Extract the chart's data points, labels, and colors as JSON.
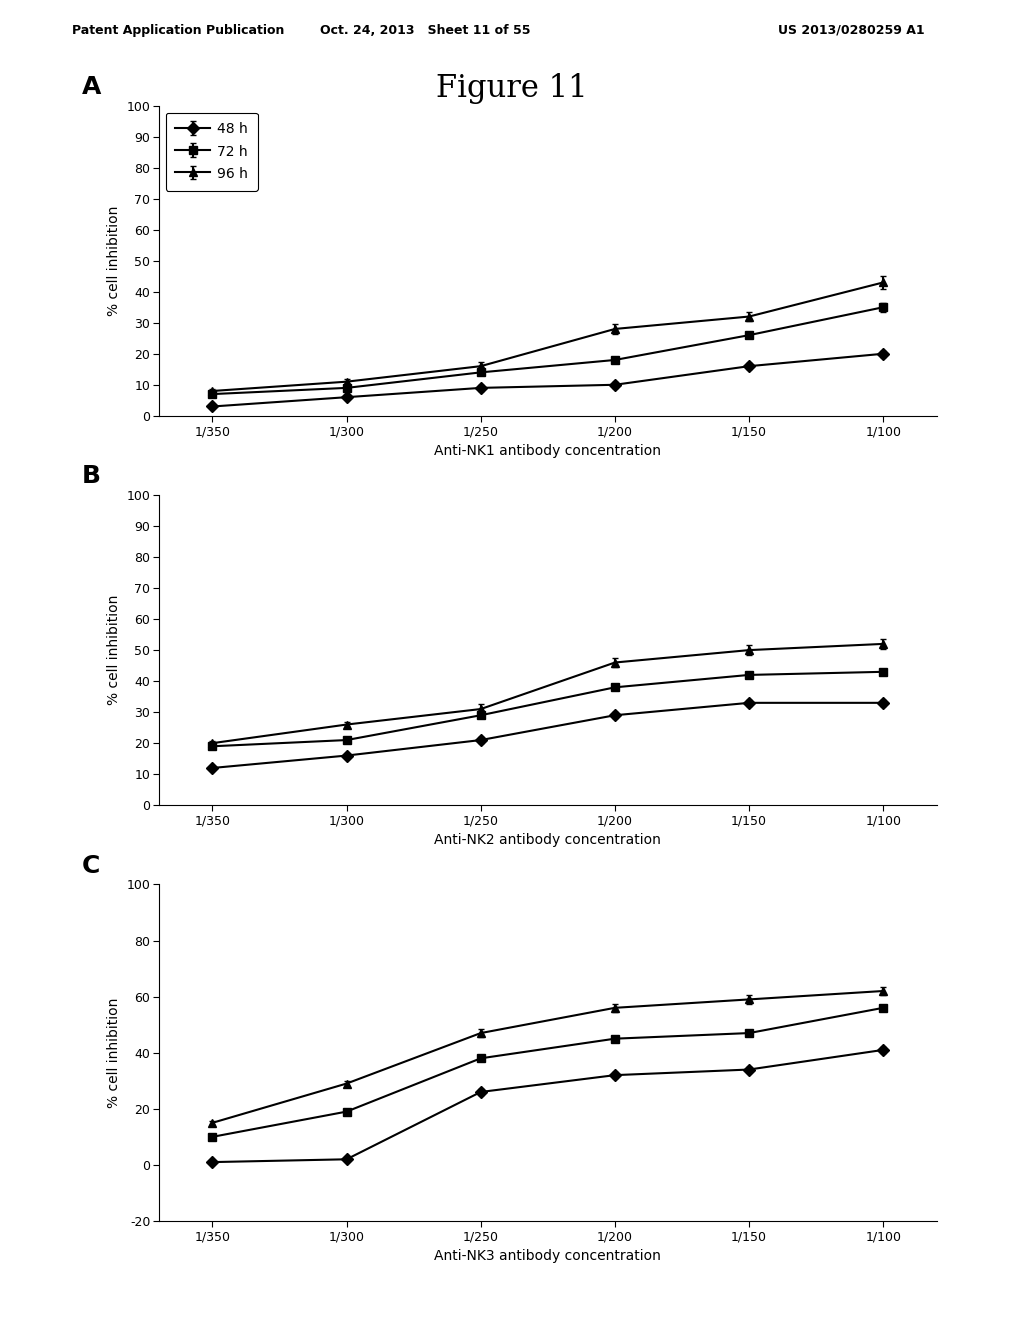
{
  "header_left": "Patent Application Publication",
  "header_mid": "Oct. 24, 2013   Sheet 11 of 55",
  "header_right": "US 2013/0280259 A1",
  "figure_title": "Figure 11",
  "x_labels": [
    "1/350",
    "1/300",
    "1/250",
    "1/200",
    "1/150",
    "1/100"
  ],
  "x_positions": [
    0,
    1,
    2,
    3,
    4,
    5
  ],
  "legend_labels": [
    "48 h",
    "72 h",
    "96 h"
  ],
  "panel_A": {
    "label": "A",
    "xlabel": "Anti-NK1 antibody concentration",
    "ylabel": "% cell inhibition",
    "ylim": [
      0,
      100
    ],
    "yticks": [
      0,
      10,
      20,
      30,
      40,
      50,
      60,
      70,
      80,
      90,
      100
    ],
    "series_48h": [
      3,
      6,
      9,
      10,
      16,
      20
    ],
    "series_72h": [
      7,
      9,
      14,
      18,
      26,
      35
    ],
    "series_96h": [
      8,
      11,
      16,
      28,
      32,
      43
    ],
    "err_48h": [
      0.5,
      0.5,
      1.0,
      1.0,
      1.0,
      1.0
    ],
    "err_72h": [
      0.5,
      0.5,
      1.0,
      1.0,
      1.0,
      1.5
    ],
    "err_96h": [
      0.8,
      0.8,
      1.5,
      1.5,
      1.5,
      2.0
    ]
  },
  "panel_B": {
    "label": "B",
    "xlabel": "Anti-NK2 antibody concentration",
    "ylabel": "% cell inhibition",
    "ylim": [
      0,
      100
    ],
    "yticks": [
      0,
      10,
      20,
      30,
      40,
      50,
      60,
      70,
      80,
      90,
      100
    ],
    "series_48h": [
      12,
      16,
      21,
      29,
      33,
      33
    ],
    "series_72h": [
      19,
      21,
      29,
      38,
      42,
      43
    ],
    "series_96h": [
      20,
      26,
      31,
      46,
      50,
      52
    ],
    "err_48h": [
      0.5,
      0.5,
      1.0,
      1.0,
      1.0,
      1.0
    ],
    "err_72h": [
      0.5,
      0.5,
      1.0,
      1.0,
      1.0,
      1.0
    ],
    "err_96h": [
      0.8,
      0.8,
      1.5,
      1.5,
      1.5,
      1.5
    ]
  },
  "panel_C": {
    "label": "C",
    "xlabel": "Anti-NK3 antibody concentration",
    "ylabel": "% cell inhibition",
    "ylim": [
      -20,
      100
    ],
    "yticks": [
      -20,
      0,
      20,
      40,
      60,
      80,
      100
    ],
    "series_48h": [
      1,
      2,
      26,
      32,
      34,
      41
    ],
    "series_72h": [
      10,
      19,
      38,
      45,
      47,
      56
    ],
    "series_96h": [
      15,
      29,
      47,
      56,
      59,
      62
    ],
    "err_48h": [
      0.5,
      0.5,
      1.0,
      1.0,
      1.0,
      1.0
    ],
    "err_72h": [
      0.5,
      0.5,
      1.0,
      1.0,
      1.0,
      1.0
    ],
    "err_96h": [
      0.8,
      0.8,
      1.5,
      1.5,
      1.5,
      1.5
    ]
  },
  "marker_48h": "D",
  "marker_72h": "s",
  "marker_96h": "^",
  "line_color": "#000000",
  "bg_color": "#ffffff",
  "fontsize_header": 9,
  "fontsize_title": 22,
  "fontsize_label": 10,
  "fontsize_tick": 9,
  "fontsize_legend": 10,
  "fontsize_panel": 18
}
